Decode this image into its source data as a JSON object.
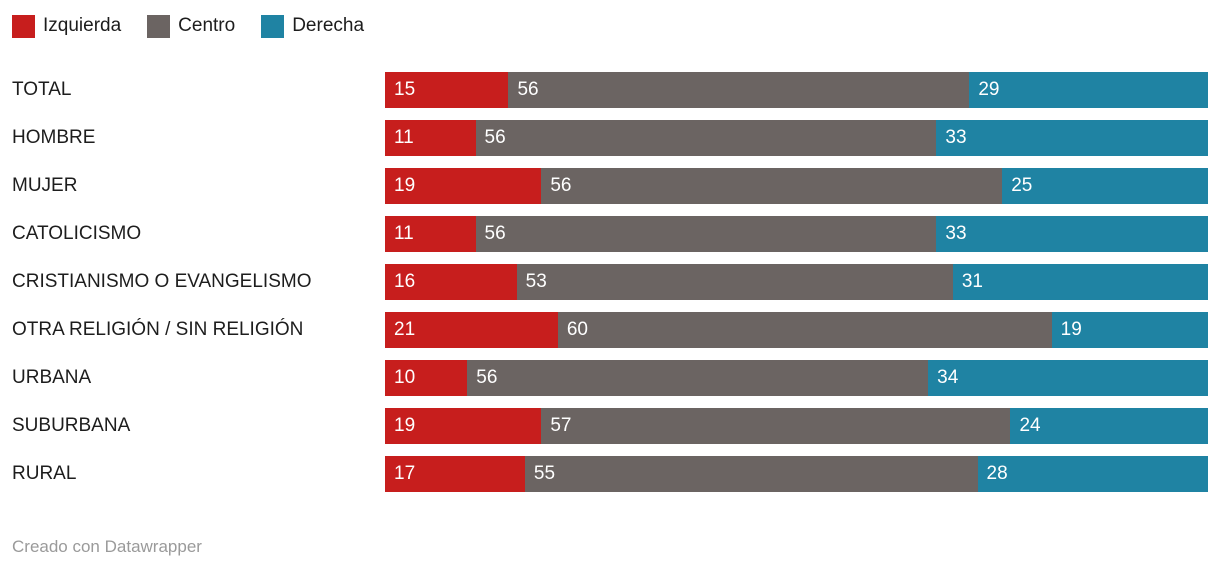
{
  "legend": {
    "items": [
      {
        "label": "Izquierda",
        "color": "#c71e1d"
      },
      {
        "label": "Centro",
        "color": "#6b6462"
      },
      {
        "label": "Derecha",
        "color": "#1f83a3"
      }
    ]
  },
  "chart_data": {
    "type": "bar",
    "stacked": true,
    "orientation": "horizontal",
    "title": "",
    "xlabel": "",
    "ylabel": "",
    "xlim": [
      0,
      100
    ],
    "grid": false,
    "legend_position": "top",
    "value_labels": "inside-start",
    "categories": [
      "TOTAL",
      "HOMBRE",
      "MUJER",
      "CATOLICISMO",
      "CRISTIANISMO O EVANGELISMO",
      "OTRA RELIGIÓN / SIN RELIGIÓN",
      "URBANA",
      "SUBURBANA",
      "RURAL"
    ],
    "series": [
      {
        "name": "Izquierda",
        "color": "#c71e1d",
        "values": [
          15,
          11,
          19,
          11,
          16,
          21,
          10,
          19,
          17
        ]
      },
      {
        "name": "Centro",
        "color": "#6b6462",
        "values": [
          56,
          56,
          56,
          56,
          53,
          60,
          56,
          57,
          55
        ]
      },
      {
        "name": "Derecha",
        "color": "#1f83a3",
        "values": [
          29,
          33,
          25,
          33,
          31,
          19,
          34,
          24,
          28
        ]
      }
    ]
  },
  "footer": {
    "text": "Creado con Datawrapper"
  }
}
